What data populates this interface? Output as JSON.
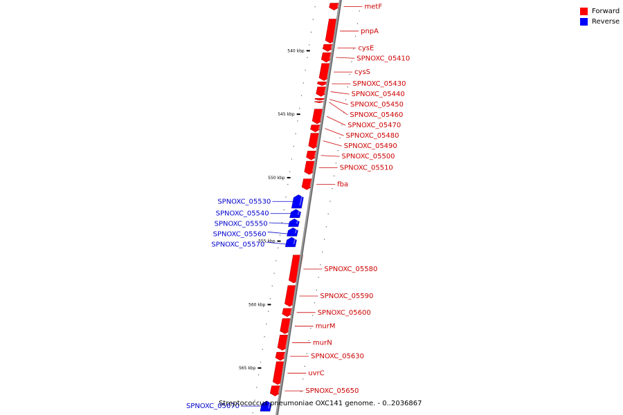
{
  "genome": {
    "caption": "Streptococcus pneumoniae OXC141 genome. - 0..2036867",
    "start_kbp": 536,
    "end_kbp": 567.5
  },
  "legend": [
    {
      "label": "Forward",
      "color": "#ff0000"
    },
    {
      "label": "Reverse",
      "color": "#0000ff"
    }
  ],
  "colors": {
    "forward": "#ff0000",
    "reverse": "#0000ff",
    "forward_label": "#cc0000",
    "reverse_label": "#0000cc",
    "backbone": "#999999"
  },
  "ticks": [
    {
      "kbp": 540,
      "label": "540 kbp"
    },
    {
      "kbp": 545,
      "label": "545 kbp"
    },
    {
      "kbp": 550,
      "label": "550 kbp"
    },
    {
      "kbp": 555,
      "label": "555 kbp"
    },
    {
      "kbp": 560,
      "label": "560 kbp"
    },
    {
      "kbp": 565,
      "label": "565 kbp"
    }
  ],
  "genes": [
    {
      "name": "metF",
      "strand": "forward",
      "start_kbp": 536.25,
      "end_kbp": 536.8
    },
    {
      "name": "pnpA",
      "strand": "forward",
      "start_kbp": 537.5,
      "end_kbp": 539.4
    },
    {
      "name": "cysE",
      "strand": "forward",
      "start_kbp": 539.5,
      "end_kbp": 540.05
    },
    {
      "name": "SPNOXC_05410",
      "strand": "forward",
      "start_kbp": 540.15,
      "end_kbp": 540.9
    },
    {
      "name": "cysS",
      "strand": "forward",
      "start_kbp": 541.0,
      "end_kbp": 542.35
    },
    {
      "name": "SPNOXC_05430",
      "strand": "forward",
      "start_kbp": 542.45,
      "end_kbp": 542.75
    },
    {
      "name": "SPNOXC_05440",
      "strand": "forward",
      "start_kbp": 542.85,
      "end_kbp": 543.6
    },
    {
      "name": "SPNOXC_05450",
      "strand": "forward",
      "start_kbp": 543.75,
      "end_kbp": 543.9
    },
    {
      "name": "SPNOXC_05460",
      "strand": "forward",
      "start_kbp": 544.0,
      "end_kbp": 544.1
    },
    {
      "name": "SPNOXC_05470",
      "strand": "forward",
      "start_kbp": 544.6,
      "end_kbp": 545.75
    },
    {
      "name": "SPNOXC_05480",
      "strand": "forward",
      "start_kbp": 545.85,
      "end_kbp": 546.4
    },
    {
      "name": "SPNOXC_05490",
      "strand": "forward",
      "start_kbp": 546.5,
      "end_kbp": 547.7
    },
    {
      "name": "SPNOXC_05500",
      "strand": "forward",
      "start_kbp": 547.9,
      "end_kbp": 548.6
    },
    {
      "name": "SPNOXC_05510",
      "strand": "forward",
      "start_kbp": 548.7,
      "end_kbp": 549.75
    },
    {
      "name": "fba",
      "strand": "forward",
      "start_kbp": 550.1,
      "end_kbp": 550.95
    },
    {
      "name": "SPNOXC_05530",
      "strand": "reverse",
      "start_kbp": 551.35,
      "end_kbp": 552.4
    },
    {
      "name": "SPNOXC_05540",
      "strand": "reverse",
      "start_kbp": 552.5,
      "end_kbp": 553.15
    },
    {
      "name": "SPNOXC_05550",
      "strand": "reverse",
      "start_kbp": 553.25,
      "end_kbp": 553.85
    },
    {
      "name": "SPNOXC_05560",
      "strand": "reverse",
      "start_kbp": 553.95,
      "end_kbp": 554.6
    },
    {
      "name": "SPNOXC_05570",
      "strand": "reverse",
      "start_kbp": 554.7,
      "end_kbp": 555.45
    },
    {
      "name": "SPNOXC_05580",
      "strand": "forward",
      "start_kbp": 556.1,
      "end_kbp": 558.3
    },
    {
      "name": "SPNOXC_05590",
      "strand": "forward",
      "start_kbp": 558.5,
      "end_kbp": 560.15
    },
    {
      "name": "SPNOXC_05600",
      "strand": "forward",
      "start_kbp": 560.3,
      "end_kbp": 560.95
    },
    {
      "name": "murM",
      "strand": "forward",
      "start_kbp": 561.1,
      "end_kbp": 562.3
    },
    {
      "name": "murN",
      "strand": "forward",
      "start_kbp": 562.4,
      "end_kbp": 563.6
    },
    {
      "name": "SPNOXC_05630",
      "strand": "forward",
      "start_kbp": 563.75,
      "end_kbp": 564.4
    },
    {
      "name": "uvrC",
      "strand": "forward",
      "start_kbp": 564.5,
      "end_kbp": 566.3
    },
    {
      "name": "SPNOXC_05650",
      "strand": "forward",
      "start_kbp": 566.4,
      "end_kbp": 567.2
    },
    {
      "name": "SPNOXC_05670",
      "strand": "reverse",
      "start_kbp": 567.6,
      "end_kbp": 568.4
    }
  ]
}
